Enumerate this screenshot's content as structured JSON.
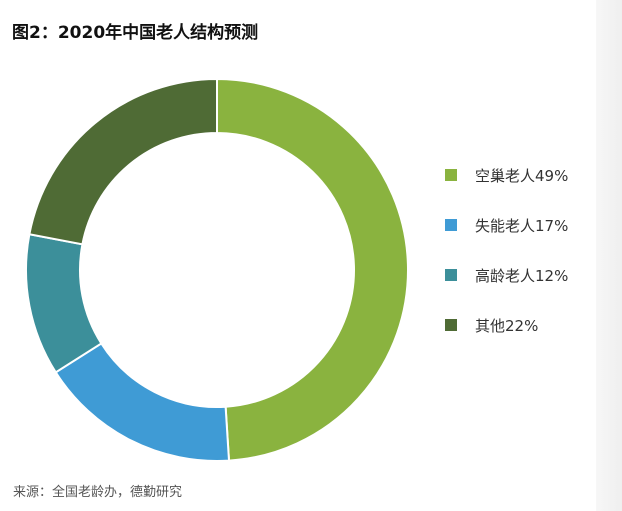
{
  "figure": {
    "title": "图2：2020年中国老人结构预测",
    "source": "来源：全国老龄办，德勤研究"
  },
  "chart_data": {
    "type": "pie",
    "variant": "donut",
    "title": "图2：2020年中国老人结构预测",
    "start_angle_deg": 0,
    "direction": "clockwise",
    "legend_position": "right",
    "slices": [
      {
        "label": "空巢老人49%",
        "value": 49,
        "color": "#8ab33f"
      },
      {
        "label": "失能老人17%",
        "value": 17,
        "color": "#3f9bd5"
      },
      {
        "label": "高龄老人12%",
        "value": 12,
        "color": "#3c8f9a"
      },
      {
        "label": "其他22%",
        "value": 22,
        "color": "#4f6b35"
      }
    ]
  }
}
